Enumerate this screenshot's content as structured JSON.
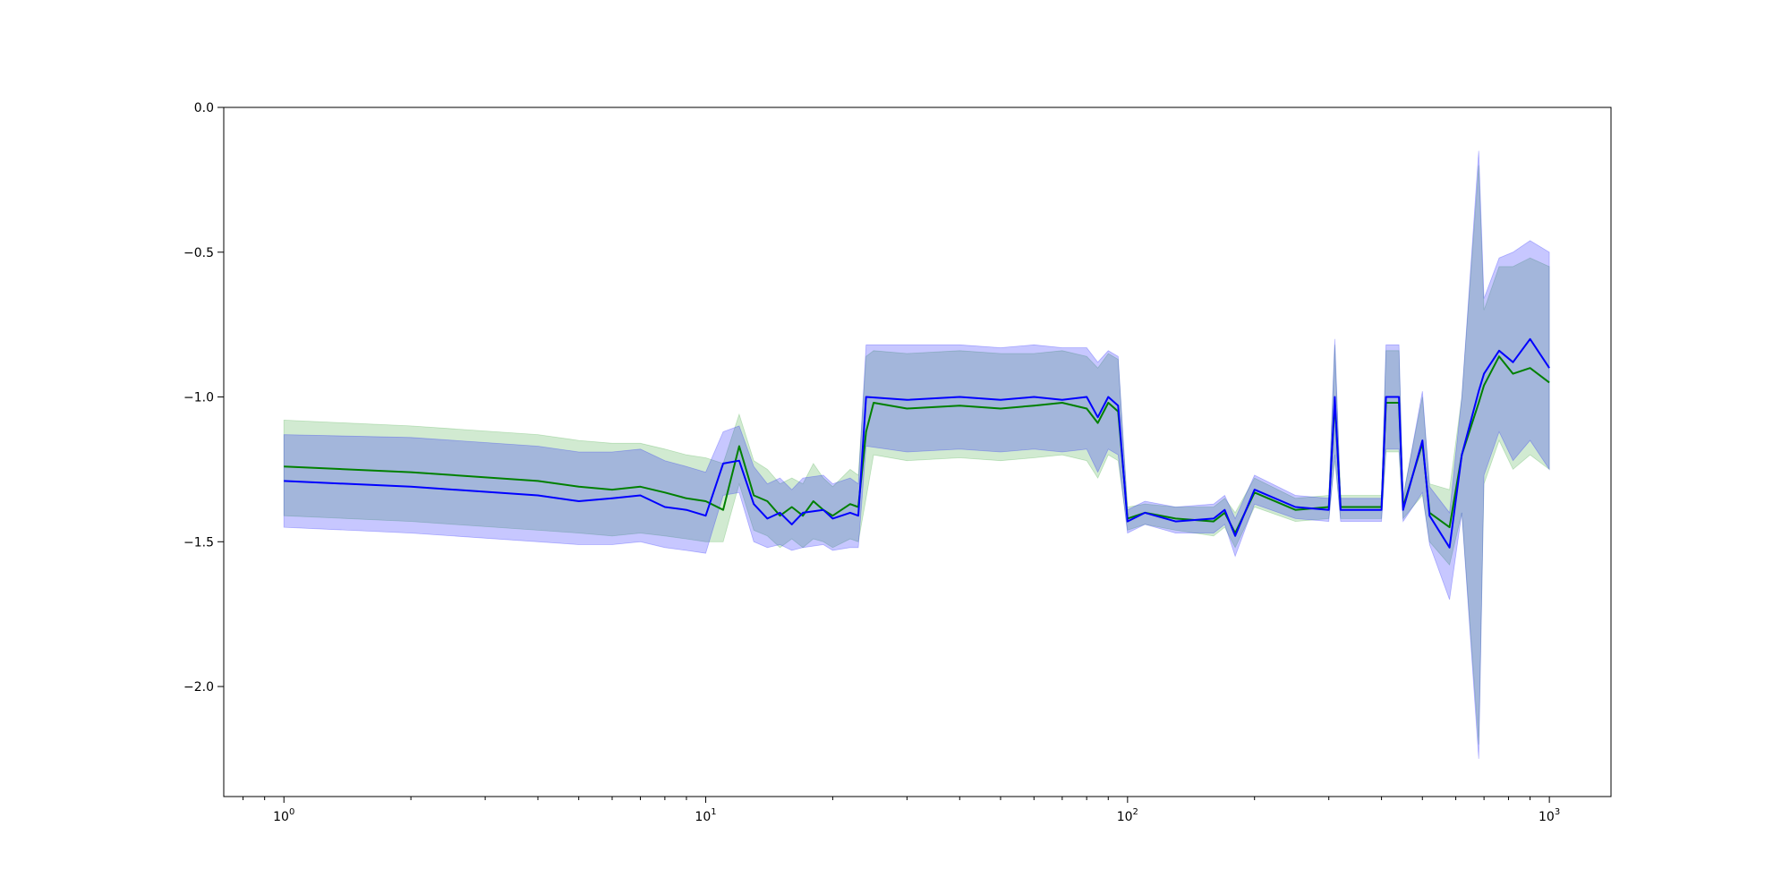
{
  "chart_data": {
    "type": "line",
    "title": "",
    "xlabel": "",
    "ylabel": "",
    "xscale": "log",
    "xlim": [
      0.72,
      1400
    ],
    "ylim": [
      -2.38,
      0.0
    ],
    "grid": false,
    "legend": "none",
    "x_ticks": [
      {
        "base": "10",
        "exp": "0",
        "value": 1
      },
      {
        "base": "10",
        "exp": "1",
        "value": 10
      },
      {
        "base": "10",
        "exp": "2",
        "value": 100
      },
      {
        "base": "10",
        "exp": "3",
        "value": 1000
      }
    ],
    "y_ticks": [
      {
        "label": "0.0",
        "value": 0.0
      },
      {
        "label": "−0.5",
        "value": -0.5
      },
      {
        "label": "−1.0",
        "value": -1.0
      },
      {
        "label": "−1.5",
        "value": -1.5
      },
      {
        "label": "−2.0",
        "value": -2.0
      }
    ],
    "series": [
      {
        "color": "#008000",
        "band_color": "#2ca02c",
        "points": [
          [
            1,
            -1.24,
            -1.08,
            -1.41
          ],
          [
            2,
            -1.26,
            -1.1,
            -1.43
          ],
          [
            4,
            -1.29,
            -1.13,
            -1.46
          ],
          [
            5,
            -1.31,
            -1.15,
            -1.47
          ],
          [
            6,
            -1.32,
            -1.16,
            -1.48
          ],
          [
            7,
            -1.31,
            -1.16,
            -1.47
          ],
          [
            8,
            -1.33,
            -1.18,
            -1.48
          ],
          [
            9,
            -1.35,
            -1.2,
            -1.49
          ],
          [
            10,
            -1.36,
            -1.21,
            -1.5
          ],
          [
            11,
            -1.39,
            -1.23,
            -1.5
          ],
          [
            12,
            -1.17,
            -1.06,
            -1.3
          ],
          [
            13,
            -1.34,
            -1.22,
            -1.46
          ],
          [
            14,
            -1.36,
            -1.25,
            -1.48
          ],
          [
            15,
            -1.41,
            -1.3,
            -1.52
          ],
          [
            16,
            -1.38,
            -1.28,
            -1.49
          ],
          [
            17,
            -1.41,
            -1.3,
            -1.52
          ],
          [
            18,
            -1.36,
            -1.23,
            -1.49
          ],
          [
            19,
            -1.39,
            -1.28,
            -1.5
          ],
          [
            20,
            -1.41,
            -1.31,
            -1.52
          ],
          [
            22,
            -1.37,
            -1.25,
            -1.49
          ],
          [
            23,
            -1.38,
            -1.27,
            -1.5
          ],
          [
            24,
            -1.12,
            -0.86,
            -1.35
          ],
          [
            25,
            -1.02,
            -0.84,
            -1.2
          ],
          [
            30,
            -1.04,
            -0.85,
            -1.22
          ],
          [
            40,
            -1.03,
            -0.84,
            -1.21
          ],
          [
            50,
            -1.04,
            -0.85,
            -1.22
          ],
          [
            60,
            -1.03,
            -0.85,
            -1.21
          ],
          [
            70,
            -1.02,
            -0.84,
            -1.2
          ],
          [
            80,
            -1.04,
            -0.86,
            -1.22
          ],
          [
            85,
            -1.09,
            -0.9,
            -1.28
          ],
          [
            90,
            -1.02,
            -0.85,
            -1.2
          ],
          [
            95,
            -1.05,
            -0.87,
            -1.22
          ],
          [
            100,
            -1.42,
            -1.38,
            -1.46
          ],
          [
            110,
            -1.4,
            -1.37,
            -1.44
          ],
          [
            130,
            -1.42,
            -1.38,
            -1.46
          ],
          [
            160,
            -1.43,
            -1.38,
            -1.48
          ],
          [
            170,
            -1.4,
            -1.35,
            -1.45
          ],
          [
            180,
            -1.47,
            -1.4,
            -1.52
          ],
          [
            200,
            -1.33,
            -1.28,
            -1.38
          ],
          [
            250,
            -1.39,
            -1.35,
            -1.43
          ],
          [
            300,
            -1.38,
            -1.34,
            -1.42
          ],
          [
            310,
            -1.02,
            -0.82,
            -1.22
          ],
          [
            320,
            -1.38,
            -1.34,
            -1.42
          ],
          [
            400,
            -1.38,
            -1.34,
            -1.42
          ],
          [
            410,
            -1.02,
            -0.84,
            -1.19
          ],
          [
            440,
            -1.02,
            -0.84,
            -1.19
          ],
          [
            450,
            -1.38,
            -1.34,
            -1.42
          ],
          [
            500,
            -1.16,
            -1.0,
            -1.34
          ],
          [
            520,
            -1.4,
            -1.3,
            -1.5
          ],
          [
            580,
            -1.45,
            -1.32,
            -1.58
          ],
          [
            620,
            -1.2,
            -1.0,
            -1.4
          ],
          [
            680,
            -1.02,
            -0.2,
            -2.2
          ],
          [
            700,
            -0.96,
            -0.7,
            -1.3
          ],
          [
            760,
            -0.86,
            -0.55,
            -1.15
          ],
          [
            820,
            -0.92,
            -0.55,
            -1.25
          ],
          [
            900,
            -0.9,
            -0.52,
            -1.2
          ],
          [
            1000,
            -0.95,
            -0.55,
            -1.25
          ]
        ]
      },
      {
        "color": "#0000ff",
        "band_color": "#0000ff",
        "points": [
          [
            1,
            -1.29,
            -1.13,
            -1.45
          ],
          [
            2,
            -1.31,
            -1.14,
            -1.47
          ],
          [
            4,
            -1.34,
            -1.17,
            -1.5
          ],
          [
            5,
            -1.36,
            -1.19,
            -1.51
          ],
          [
            6,
            -1.35,
            -1.19,
            -1.51
          ],
          [
            7,
            -1.34,
            -1.18,
            -1.5
          ],
          [
            8,
            -1.38,
            -1.22,
            -1.52
          ],
          [
            9,
            -1.39,
            -1.24,
            -1.53
          ],
          [
            10,
            -1.41,
            -1.26,
            -1.54
          ],
          [
            11,
            -1.23,
            -1.12,
            -1.34
          ],
          [
            12,
            -1.22,
            -1.1,
            -1.33
          ],
          [
            13,
            -1.37,
            -1.24,
            -1.5
          ],
          [
            14,
            -1.42,
            -1.3,
            -1.52
          ],
          [
            15,
            -1.4,
            -1.28,
            -1.51
          ],
          [
            16,
            -1.44,
            -1.32,
            -1.53
          ],
          [
            17,
            -1.4,
            -1.28,
            -1.52
          ],
          [
            19,
            -1.39,
            -1.27,
            -1.51
          ],
          [
            20,
            -1.42,
            -1.3,
            -1.53
          ],
          [
            22,
            -1.4,
            -1.28,
            -1.52
          ],
          [
            23,
            -1.41,
            -1.3,
            -1.52
          ],
          [
            24,
            -1.0,
            -0.82,
            -1.17
          ],
          [
            30,
            -1.01,
            -0.82,
            -1.19
          ],
          [
            40,
            -1.0,
            -0.82,
            -1.18
          ],
          [
            50,
            -1.01,
            -0.83,
            -1.19
          ],
          [
            60,
            -1.0,
            -0.82,
            -1.18
          ],
          [
            70,
            -1.01,
            -0.83,
            -1.19
          ],
          [
            80,
            -1.0,
            -0.83,
            -1.18
          ],
          [
            85,
            -1.07,
            -0.88,
            -1.26
          ],
          [
            90,
            -1.0,
            -0.84,
            -1.18
          ],
          [
            95,
            -1.03,
            -0.86,
            -1.2
          ],
          [
            100,
            -1.43,
            -1.39,
            -1.47
          ],
          [
            110,
            -1.4,
            -1.36,
            -1.44
          ],
          [
            130,
            -1.43,
            -1.38,
            -1.47
          ],
          [
            160,
            -1.42,
            -1.37,
            -1.47
          ],
          [
            170,
            -1.39,
            -1.34,
            -1.44
          ],
          [
            180,
            -1.48,
            -1.42,
            -1.55
          ],
          [
            200,
            -1.32,
            -1.27,
            -1.37
          ],
          [
            250,
            -1.38,
            -1.34,
            -1.42
          ],
          [
            300,
            -1.39,
            -1.35,
            -1.43
          ],
          [
            310,
            -1.0,
            -0.8,
            -1.2
          ],
          [
            320,
            -1.39,
            -1.35,
            -1.43
          ],
          [
            400,
            -1.39,
            -1.35,
            -1.43
          ],
          [
            410,
            -1.0,
            -0.82,
            -1.18
          ],
          [
            440,
            -1.0,
            -0.82,
            -1.18
          ],
          [
            450,
            -1.39,
            -1.35,
            -1.43
          ],
          [
            500,
            -1.15,
            -0.98,
            -1.33
          ],
          [
            520,
            -1.41,
            -1.31,
            -1.51
          ],
          [
            580,
            -1.52,
            -1.4,
            -1.7
          ],
          [
            620,
            -1.2,
            -1.0,
            -1.4
          ],
          [
            680,
            -0.98,
            -0.15,
            -2.25
          ],
          [
            700,
            -0.92,
            -0.66,
            -1.27
          ],
          [
            760,
            -0.84,
            -0.52,
            -1.12
          ],
          [
            820,
            -0.88,
            -0.5,
            -1.22
          ],
          [
            900,
            -0.8,
            -0.46,
            -1.15
          ],
          [
            1000,
            -0.9,
            -0.5,
            -1.25
          ]
        ]
      }
    ]
  }
}
